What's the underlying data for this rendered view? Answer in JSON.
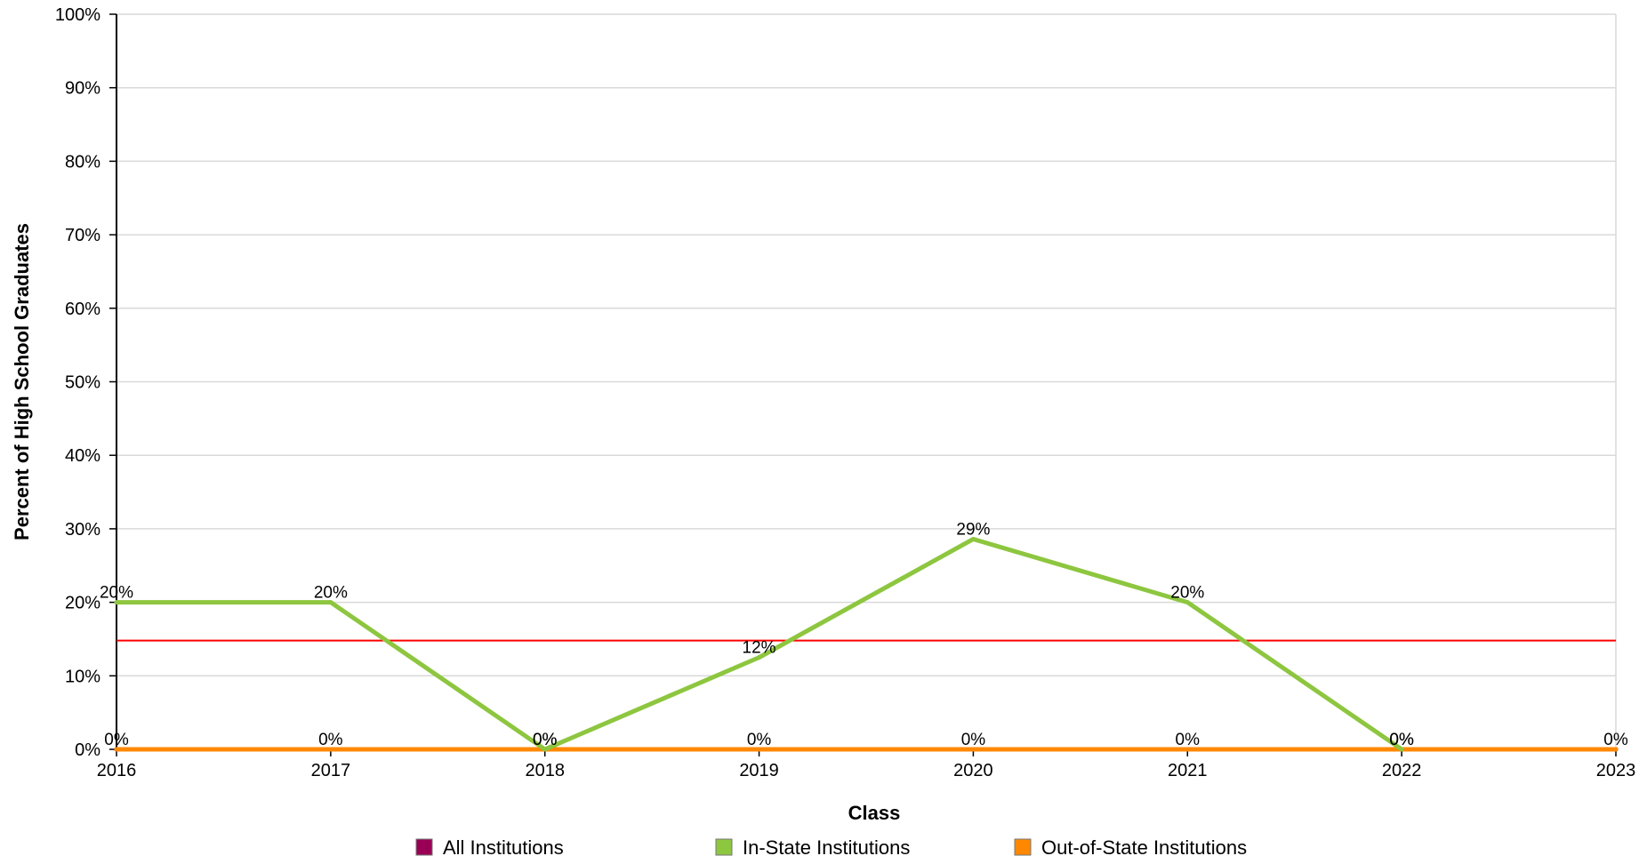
{
  "chart_data": {
    "type": "line",
    "xlabel": "Class",
    "ylabel": "Percent of High School Graduates",
    "ylim": [
      0,
      100
    ],
    "y_tick_values": [
      0,
      10,
      20,
      30,
      40,
      50,
      60,
      70,
      80,
      90,
      100
    ],
    "y_tick_labels": [
      "0%",
      "10%",
      "20%",
      "30%",
      "40%",
      "50%",
      "60%",
      "70%",
      "80%",
      "90%",
      "100%"
    ],
    "categories": [
      "2016",
      "2017",
      "2018",
      "2019",
      "2020",
      "2021",
      "2022",
      "2023"
    ],
    "grid": true,
    "legend_placement": "bottom",
    "reference_line": {
      "value": 14.8,
      "color": "#ff0000"
    },
    "series": [
      {
        "name": "All Institutions",
        "color": "#990055",
        "values": [
          0,
          0,
          0,
          0,
          0,
          0,
          0,
          0
        ],
        "labels": [
          "0%",
          "0%",
          "0%",
          "0%",
          "0%",
          "0%",
          "0%",
          "0%"
        ],
        "show_labels": true
      },
      {
        "name": "In-State Institutions",
        "color": "#8dc63f",
        "values": [
          20,
          20,
          0,
          12.5,
          28.6,
          20,
          0,
          null
        ],
        "labels": [
          "20%",
          "20%",
          "0%",
          "12%",
          "29%",
          "20%",
          "0%",
          ""
        ],
        "show_labels": true
      },
      {
        "name": "Out-of-State Institutions",
        "color": "#ff8800",
        "values": [
          0,
          0,
          0,
          0,
          0,
          0,
          0,
          0
        ],
        "labels": [
          "",
          "",
          "",
          "",
          "",
          "",
          "",
          ""
        ],
        "show_labels": false
      }
    ]
  }
}
